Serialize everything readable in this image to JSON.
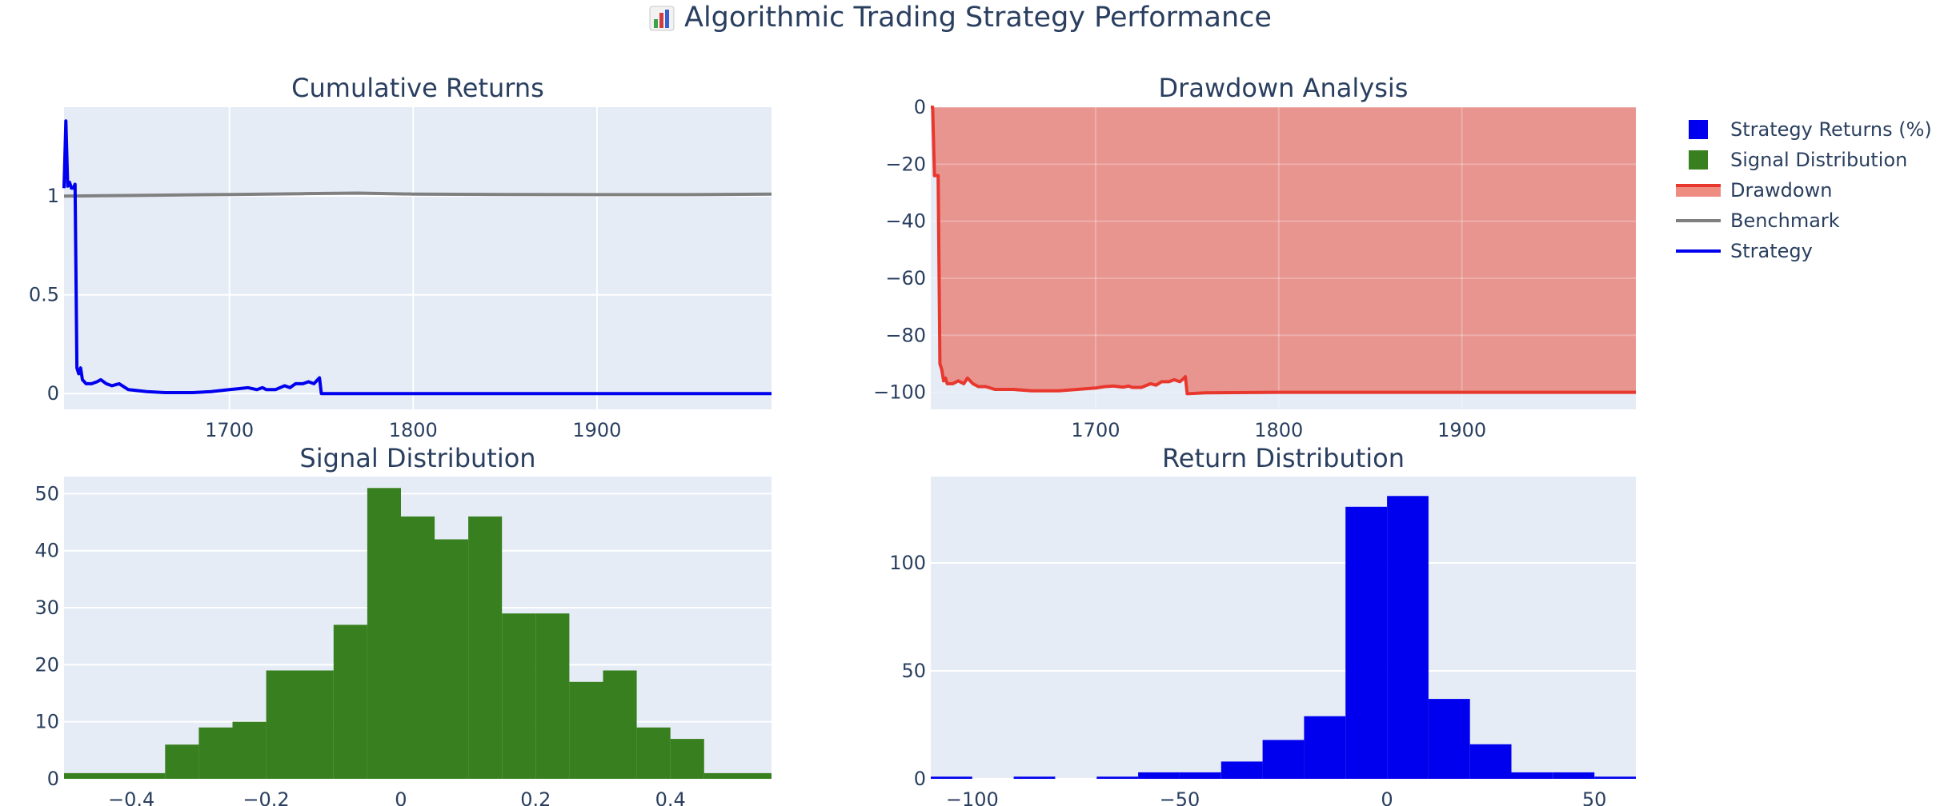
{
  "title": "Algorithmic Trading Strategy Performance",
  "colors": {
    "plot_bg": "#e5ecf6",
    "grid": "#ffffff",
    "strategy": "#0000ee",
    "benchmark": "#808080",
    "drawdown_line": "#e8372d",
    "drawdown_fill": "#e8908a",
    "signal_bar": "#38801f",
    "return_bar": "#0000ee",
    "text": "#2a3f5f"
  },
  "legend": {
    "items": [
      {
        "label": "Strategy Returns (%)",
        "symbol": "square",
        "color": "#0000ee"
      },
      {
        "label": "Signal Distribution",
        "symbol": "square",
        "color": "#38801f"
      },
      {
        "label": "Drawdown",
        "symbol": "band",
        "color": "#e8372d",
        "fill": "#ef8c82"
      },
      {
        "label": "Benchmark",
        "symbol": "line",
        "color": "#808080"
      },
      {
        "label": "Strategy",
        "symbol": "line",
        "color": "#0000ee"
      }
    ]
  },
  "chart_data": [
    {
      "id": "cumret",
      "type": "line",
      "title": "Cumulative Returns",
      "xlim": [
        1610,
        1995
      ],
      "ylim": [
        -0.08,
        1.45
      ],
      "xticks": [
        1700,
        1800,
        1900
      ],
      "yticks": [
        0,
        0.5,
        1
      ],
      "ytick_labels": [
        "0",
        "0.5",
        "1"
      ],
      "series": [
        {
          "name": "Benchmark",
          "color": "#808080",
          "x": [
            1610,
            1650,
            1700,
            1740,
            1770,
            1800,
            1850,
            1900,
            1950,
            1995
          ],
          "y": [
            1.0,
            1.003,
            1.008,
            1.012,
            1.015,
            1.01,
            1.008,
            1.007,
            1.007,
            1.01
          ]
        },
        {
          "name": "Strategy",
          "color": "#0000ee",
          "x": [
            1610,
            1611,
            1612,
            1613,
            1614,
            1615,
            1616,
            1617,
            1618,
            1619,
            1620,
            1622,
            1625,
            1628,
            1630,
            1633,
            1636,
            1640,
            1645,
            1655,
            1665,
            1680,
            1690,
            1700,
            1705,
            1710,
            1715,
            1718,
            1720,
            1725,
            1730,
            1733,
            1736,
            1740,
            1743,
            1746,
            1748,
            1749,
            1750,
            1760,
            1800,
            1850,
            1900,
            1950,
            1995
          ],
          "y": [
            1.04,
            1.38,
            1.05,
            1.07,
            1.04,
            1.04,
            1.06,
            0.13,
            0.1,
            0.13,
            0.07,
            0.05,
            0.05,
            0.06,
            0.07,
            0.05,
            0.04,
            0.05,
            0.02,
            0.01,
            0.005,
            0.005,
            0.01,
            0.02,
            0.025,
            0.03,
            0.02,
            0.03,
            0.02,
            0.02,
            0.04,
            0.03,
            0.05,
            0.05,
            0.06,
            0.05,
            0.07,
            0.08,
            0.0,
            0.0,
            0.0,
            0.0,
            0.0,
            0.0,
            0.0
          ]
        }
      ]
    },
    {
      "id": "drawdown",
      "type": "area",
      "title": "Drawdown Analysis",
      "xlim": [
        1610,
        1995
      ],
      "ylim": [
        -106,
        0
      ],
      "xticks": [
        1700,
        1800,
        1900
      ],
      "yticks": [
        0,
        -20,
        -40,
        -60,
        -80,
        -100
      ],
      "ytick_labels": [
        "0",
        "−20",
        "−40",
        "−60",
        "−80",
        "−100"
      ],
      "series": [
        {
          "name": "Drawdown",
          "color": "#e8372d",
          "x": [
            1610,
            1611,
            1612,
            1613,
            1614,
            1615,
            1616,
            1617,
            1618,
            1619,
            1620,
            1622,
            1625,
            1628,
            1630,
            1633,
            1636,
            1640,
            1645,
            1655,
            1665,
            1680,
            1690,
            1700,
            1705,
            1710,
            1715,
            1718,
            1720,
            1725,
            1730,
            1733,
            1736,
            1740,
            1743,
            1746,
            1748,
            1749,
            1750,
            1760,
            1800,
            1850,
            1900,
            1950,
            1995
          ],
          "y": [
            0,
            0,
            -24,
            -24,
            -24,
            -90,
            -92,
            -96,
            -95,
            -97,
            -97,
            -97,
            -96,
            -97,
            -95,
            -97,
            -98,
            -98,
            -99,
            -99,
            -99.5,
            -99.5,
            -99,
            -98.5,
            -98,
            -97.8,
            -98.2,
            -97.8,
            -98.3,
            -98.3,
            -97,
            -97.5,
            -96.3,
            -96.3,
            -95.6,
            -96.3,
            -95.2,
            -94.5,
            -100.5,
            -100.2,
            -100,
            -100,
            -100,
            -100,
            -100
          ]
        }
      ]
    },
    {
      "id": "signal",
      "type": "bar",
      "title": "Signal Distribution",
      "xlim": [
        -0.5,
        0.55
      ],
      "ylim": [
        0,
        53
      ],
      "xticks": [
        -0.4,
        -0.2,
        0,
        0.2,
        0.4
      ],
      "xtick_labels": [
        "−0.4",
        "−0.2",
        "0",
        "0.2",
        "0.4"
      ],
      "yticks": [
        0,
        10,
        20,
        30,
        40,
        50
      ],
      "bin_edges": [
        -0.5,
        -0.35,
        -0.3,
        -0.25,
        -0.2,
        -0.1,
        -0.05,
        0,
        0.05,
        0.1,
        0.15,
        0.2,
        0.25,
        0.3,
        0.35,
        0.4,
        0.45,
        0.55
      ],
      "counts": [
        1,
        6,
        9,
        10,
        19,
        27,
        51,
        46,
        42,
        46,
        29,
        29,
        17,
        19,
        9,
        7,
        1
      ]
    },
    {
      "id": "returns",
      "type": "bar",
      "title": "Return Distribution",
      "xlim": [
        -110,
        60
      ],
      "ylim": [
        0,
        140
      ],
      "xticks": [
        -100,
        -50,
        0,
        50
      ],
      "xtick_labels": [
        "−100",
        "−50",
        "0",
        "50"
      ],
      "yticks": [
        0,
        50,
        100
      ],
      "bin_edges": [
        -110,
        -100,
        -90,
        -80,
        -70,
        -60,
        -50,
        -40,
        -30,
        -20,
        -10,
        0,
        10,
        20,
        30,
        40,
        50,
        60
      ],
      "counts": [
        1,
        0,
        1,
        0,
        1,
        3,
        3,
        8,
        18,
        29,
        126,
        131,
        37,
        16,
        3,
        3,
        1
      ]
    }
  ]
}
